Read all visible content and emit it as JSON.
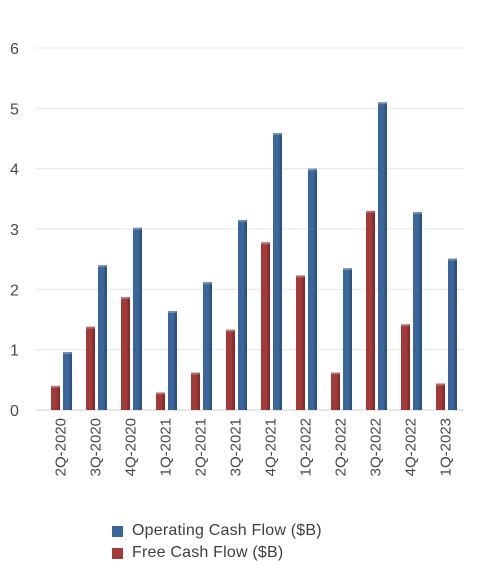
{
  "chart_data": {
    "type": "bar",
    "categories": [
      "2Q-2020",
      "3Q-2020",
      "4Q-2020",
      "1Q-2021",
      "2Q-2021",
      "3Q-2021",
      "4Q-2021",
      "1Q-2022",
      "2Q-2022",
      "3Q-2022",
      "4Q-2022",
      "1Q-2023"
    ],
    "series": [
      {
        "name": "Free Cash Flow ($B)",
        "color": "#a23a3a",
        "values": [
          0.4,
          1.38,
          1.87,
          0.29,
          0.62,
          1.33,
          2.78,
          2.23,
          0.62,
          3.3,
          1.42,
          0.44
        ]
      },
      {
        "name": "Operating Cash Flow ($B)",
        "color": "#3b669c",
        "values": [
          0.96,
          2.4,
          3.02,
          1.64,
          2.12,
          3.15,
          4.59,
          4.0,
          2.35,
          5.1,
          3.28,
          2.51
        ]
      }
    ],
    "yticks": [
      0,
      1,
      2,
      3,
      4,
      5,
      6
    ],
    "ylim": [
      0,
      6
    ],
    "grid": true,
    "legend": "bottom"
  },
  "legend": {
    "items": [
      {
        "label": "Operating Cash Flow ($B)",
        "color": "#3b669c"
      },
      {
        "label": "Free Cash Flow ($B)",
        "color": "#a23a3a"
      }
    ]
  }
}
